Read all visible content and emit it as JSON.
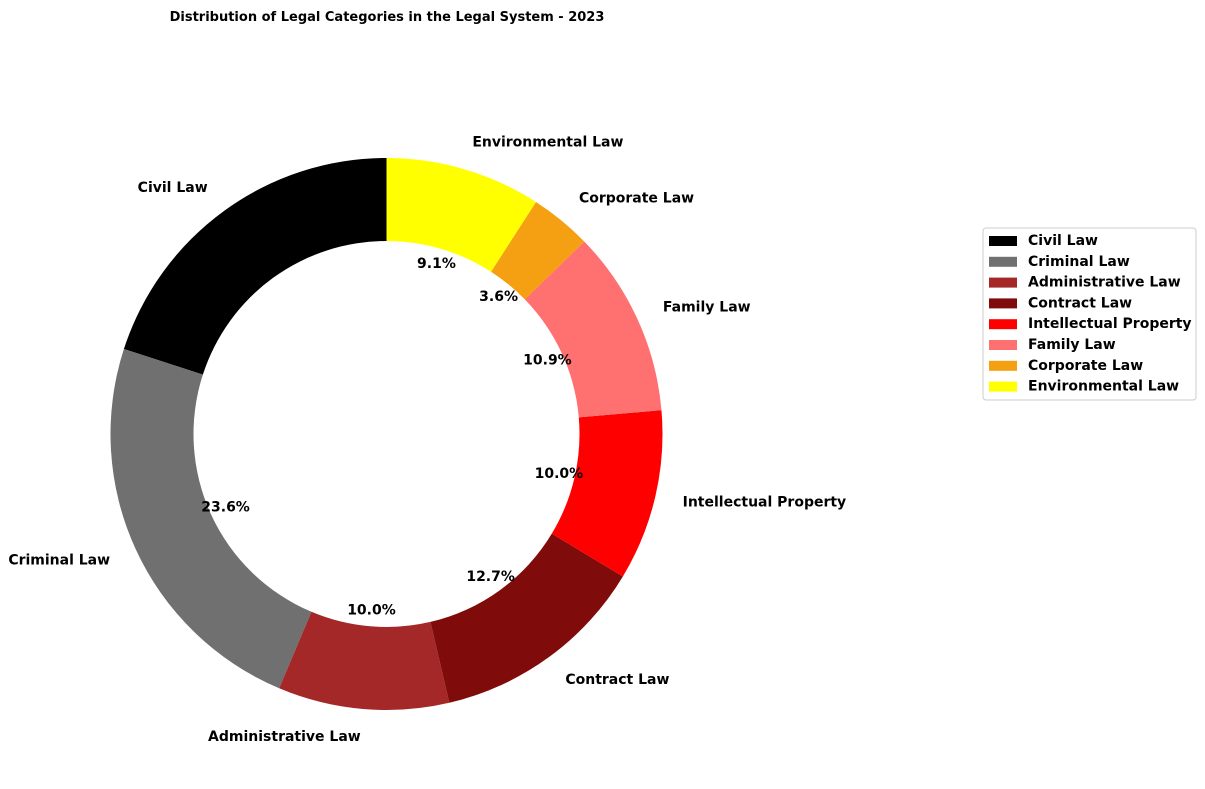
{
  "chart_data": {
    "type": "pie",
    "subtype": "donut",
    "title": "Distribution of Legal Categories in the Legal System - 2023",
    "start_angle_deg": 90,
    "direction": "counterclockwise",
    "legend_placement": "right",
    "slices": [
      {
        "label": "Civil Law",
        "value": 20.0,
        "pct_label": "",
        "color": "#000000"
      },
      {
        "label": "Criminal Law",
        "value": 23.6,
        "pct_label": "23.6%",
        "color": "#707070"
      },
      {
        "label": "Administrative Law",
        "value": 10.0,
        "pct_label": "10.0%",
        "color": "#a52828"
      },
      {
        "label": "Contract Law",
        "value": 12.7,
        "pct_label": "12.7%",
        "color": "#800b0b"
      },
      {
        "label": "Intellectual Property",
        "value": 10.0,
        "pct_label": "10.0%",
        "color": "#ff0000"
      },
      {
        "label": "Family Law",
        "value": 10.9,
        "pct_label": "10.9%",
        "color": "#ff7070"
      },
      {
        "label": "Corporate Law",
        "value": 3.6,
        "pct_label": "3.6%",
        "color": "#f4a012"
      },
      {
        "label": "Environmental Law",
        "value": 9.1,
        "pct_label": "9.1%",
        "color": "#ffff00"
      }
    ]
  }
}
